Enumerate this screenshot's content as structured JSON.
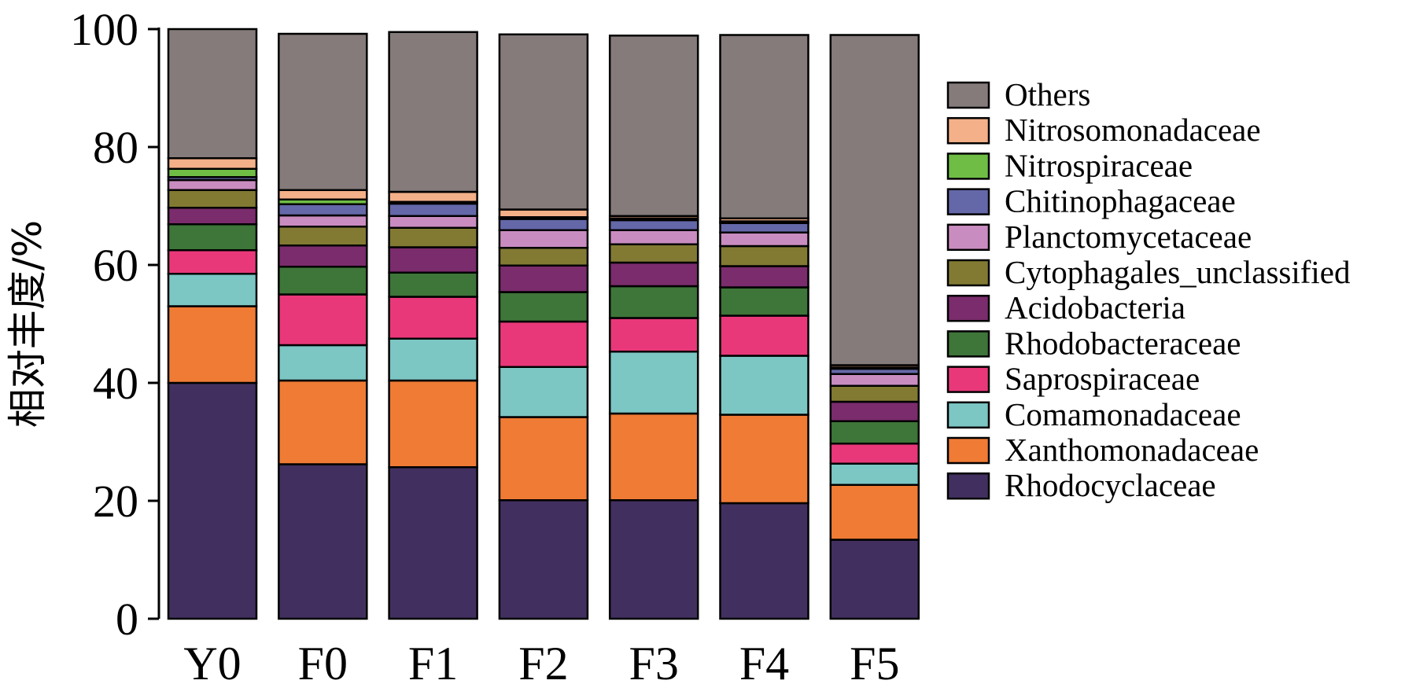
{
  "chart_data": {
    "type": "bar",
    "stacked": true,
    "ylabel": "相对丰度/%",
    "xlabel": "",
    "ylim": [
      0,
      100
    ],
    "yticks": [
      "0",
      "20",
      "40",
      "60",
      "80",
      "100"
    ],
    "categories": [
      "Y0",
      "F0",
      "F1",
      "F2",
      "F3",
      "F4",
      "F5"
    ],
    "legend_placement": "right",
    "series": [
      {
        "name": "Rhodocyclaceae",
        "color": "#41305f",
        "values": [
          40.0,
          26.2,
          25.7,
          20.1,
          20.1,
          19.6,
          13.4
        ]
      },
      {
        "name": "Xanthomonadaceae",
        "color": "#ef7b35",
        "values": [
          13.0,
          14.2,
          14.7,
          14.1,
          14.7,
          15.0,
          9.3
        ]
      },
      {
        "name": "Comamonadaceae",
        "color": "#7cc6c4",
        "values": [
          5.5,
          6.0,
          7.1,
          8.5,
          10.5,
          10.0,
          3.6
        ]
      },
      {
        "name": "Saprospiraceae",
        "color": "#e9387a",
        "values": [
          4.0,
          8.6,
          7.1,
          7.7,
          5.7,
          6.8,
          3.4
        ]
      },
      {
        "name": "Rhodobacteraceae",
        "color": "#3e7539",
        "values": [
          4.4,
          4.7,
          4.1,
          5.0,
          5.4,
          4.8,
          3.8
        ]
      },
      {
        "name": "Acidobacteria",
        "color": "#7a2c6c",
        "values": [
          2.8,
          3.6,
          4.3,
          4.5,
          4.0,
          3.6,
          3.3
        ]
      },
      {
        "name": "Cytophagales_unclassified",
        "color": "#827a33",
        "values": [
          3.0,
          3.2,
          3.3,
          3.0,
          3.1,
          3.4,
          2.7
        ]
      },
      {
        "name": "Planctomycetaceae",
        "color": "#c98cc0",
        "values": [
          1.7,
          1.9,
          2.0,
          3.0,
          2.4,
          2.3,
          2.0
        ]
      },
      {
        "name": "Chitinophagaceae",
        "color": "#6468a8",
        "values": [
          0.5,
          1.9,
          2.1,
          1.9,
          1.7,
          1.6,
          0.9
        ]
      },
      {
        "name": "Nitrospiraceae",
        "color": "#6fbd45",
        "values": [
          1.4,
          0.8,
          0.3,
          0.3,
          0.3,
          0.3,
          0.2
        ]
      },
      {
        "name": "Nitrosomonadaceae",
        "color": "#f4b088",
        "values": [
          1.8,
          1.6,
          1.7,
          1.3,
          0.4,
          0.5,
          0.4
        ]
      },
      {
        "name": "Others",
        "color": "#857b7b",
        "values": [
          21.9,
          26.5,
          27.1,
          29.7,
          30.6,
          31.1,
          56.0
        ]
      }
    ]
  }
}
